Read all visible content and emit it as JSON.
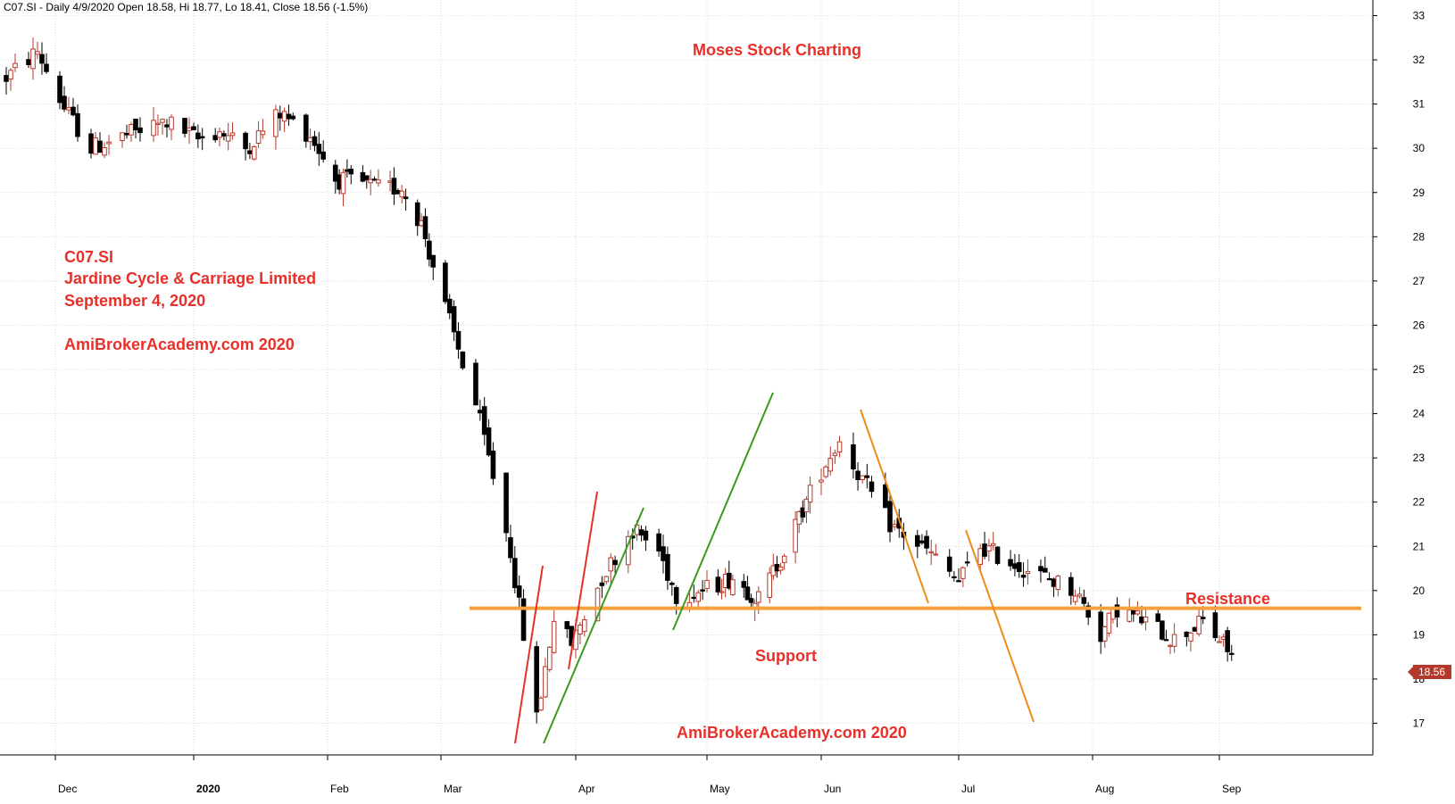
{
  "header": {
    "title": "C07.SI - Daily 4/9/2020 Open 18.58, Hi 18.77, Lo 18.41, Close 18.56 (-1.5%)"
  },
  "annotations": {
    "watermark_top": "Moses Stock Charting",
    "ticker": "C07.SI",
    "company": "Jardine Cycle & Carriage Limited",
    "date": "September 4, 2020",
    "site_left": "AmiBrokerAcademy.com 2020",
    "site_bottom": "AmiBrokerAcademy.com  2020",
    "support": "Support",
    "resistance": "Resistance",
    "last_price_tag": "18.56"
  },
  "colors": {
    "annotation": "#e8302a",
    "bear_candle": "#000000",
    "bull_candle": "#b5392a",
    "support_resistance_line": "#f4a13b",
    "uptrend_red": "#e8302a",
    "uptrend_green": "#3a9a1f",
    "downtrend_orange": "#f08a1c",
    "grid": "#d9d9d9",
    "price_tag_bg": "#b5392a"
  },
  "chart_data": {
    "type": "candlestick",
    "title": "C07.SI - Daily 4/9/2020 Open 18.58, Hi 18.77, Lo 18.41, Close 18.56 (-1.5%)",
    "x_ticks": [
      "Dec",
      "2020",
      "Feb",
      "Mar",
      "Apr",
      "May",
      "Jun",
      "Jul",
      "Aug",
      "Sep"
    ],
    "y_ticks": [
      "17",
      "18",
      "19",
      "20",
      "21",
      "22",
      "23",
      "24",
      "25",
      "26",
      "27",
      "28",
      "29",
      "30",
      "31",
      "32",
      "33"
    ],
    "ylim": [
      16.3,
      33.3
    ],
    "grid": true,
    "period": "2019-11-20 to 2020-09-04",
    "support_resistance_level": 19.6,
    "last_close": 18.56,
    "last_bar": {
      "date": "2020-09-04",
      "open": 18.58,
      "high": 18.77,
      "low": 18.41,
      "close": 18.56
    },
    "price_path": [
      [
        "2019-11-20",
        31.6
      ],
      [
        "2019-11-27",
        32.2
      ],
      [
        "2019-12-03",
        30.9
      ],
      [
        "2019-12-09",
        30.0
      ],
      [
        "2019-12-17",
        30.3
      ],
      [
        "2019-12-26",
        30.6
      ],
      [
        "2020-01-02",
        30.2
      ],
      [
        "2020-01-07",
        30.4
      ],
      [
        "2020-01-13",
        30.0
      ],
      [
        "2020-01-21",
        30.8
      ],
      [
        "2020-01-28",
        30.3
      ],
      [
        "2020-02-03",
        29.3
      ],
      [
        "2020-02-10",
        29.2
      ],
      [
        "2020-02-14",
        29.1
      ],
      [
        "2020-02-20",
        29.1
      ],
      [
        "2020-02-25",
        28.3
      ],
      [
        "2020-03-02",
        26.4
      ],
      [
        "2020-03-09",
        24.2
      ],
      [
        "2020-03-13",
        22.6
      ],
      [
        "2020-03-17",
        20.9
      ],
      [
        "2020-03-23",
        17.1
      ],
      [
        "2020-03-27",
        19.4
      ],
      [
        "2020-03-31",
        18.8
      ],
      [
        "2020-04-07",
        20.3
      ],
      [
        "2020-04-14",
        21.4
      ],
      [
        "2020-04-20",
        20.9
      ],
      [
        "2020-04-24",
        19.9
      ],
      [
        "2020-04-30",
        20.0
      ],
      [
        "2020-05-08",
        20.3
      ],
      [
        "2020-05-15",
        19.8
      ],
      [
        "2020-05-22",
        20.9
      ],
      [
        "2020-05-29",
        22.2
      ],
      [
        "2020-06-05",
        23.4
      ],
      [
        "2020-06-10",
        22.5
      ],
      [
        "2020-06-16",
        21.5
      ],
      [
        "2020-06-24",
        20.9
      ],
      [
        "2020-07-01",
        20.2
      ],
      [
        "2020-07-06",
        21.0
      ],
      [
        "2020-07-14",
        20.6
      ],
      [
        "2020-07-21",
        20.3
      ],
      [
        "2020-07-28",
        20.0
      ],
      [
        "2020-08-03",
        19.0
      ],
      [
        "2020-08-07",
        19.6
      ],
      [
        "2020-08-14",
        19.3
      ],
      [
        "2020-08-21",
        18.9
      ],
      [
        "2020-08-28",
        19.3
      ],
      [
        "2020-09-04",
        18.56
      ]
    ]
  }
}
